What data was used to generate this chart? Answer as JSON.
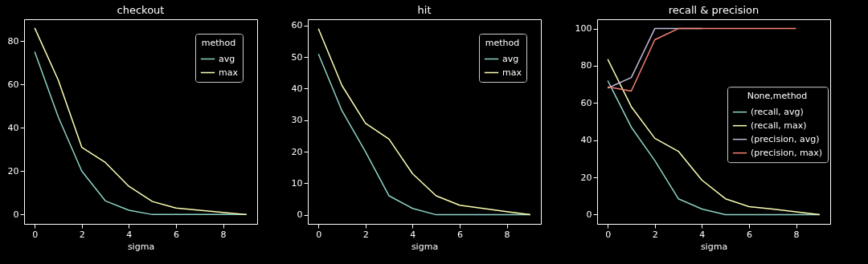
{
  "chart_data": [
    {
      "type": "line",
      "title": "checkout",
      "xlabel": "sigma",
      "legend_title": "method",
      "legend": "top right",
      "x": [
        0,
        1,
        2,
        3,
        4,
        5,
        6,
        7,
        8,
        9
      ],
      "xlim": [
        -0.45,
        9.45
      ],
      "ylim": [
        -4.3,
        90
      ],
      "xticks": [
        0,
        2,
        4,
        6,
        8
      ],
      "yticks": [
        0,
        20,
        40,
        60,
        80
      ],
      "series": [
        {
          "name": "avg",
          "color": "#8dd3c7",
          "values": [
            75,
            45,
            20,
            6.3,
            2,
            0,
            0,
            0,
            0,
            0
          ]
        },
        {
          "name": "max",
          "color": "#feffb3",
          "values": [
            86,
            62,
            31,
            24,
            13,
            6,
            3,
            2,
            1,
            0
          ]
        }
      ]
    },
    {
      "type": "line",
      "title": "hit",
      "xlabel": "sigma",
      "legend_title": "method",
      "legend": "top right",
      "x": [
        0,
        1,
        2,
        3,
        4,
        5,
        6,
        7,
        8,
        9
      ],
      "xlim": [
        -0.45,
        9.45
      ],
      "ylim": [
        -2.9,
        62
      ],
      "xticks": [
        0,
        2,
        4,
        6,
        8
      ],
      "yticks": [
        0,
        10,
        20,
        30,
        40,
        50,
        60
      ],
      "series": [
        {
          "name": "avg",
          "color": "#8dd3c7",
          "values": [
            51,
            33,
            20,
            6,
            2,
            0,
            0,
            0,
            0,
            0
          ]
        },
        {
          "name": "max",
          "color": "#feffb3",
          "values": [
            59,
            41,
            29,
            24,
            13,
            6,
            3,
            2,
            1,
            0
          ]
        }
      ]
    },
    {
      "type": "line",
      "title": "recall & precision",
      "xlabel": "sigma",
      "legend_title": "None,method",
      "legend": "right",
      "x": [
        0,
        1,
        2,
        3,
        4,
        5,
        6,
        7,
        8,
        9
      ],
      "xlim": [
        -0.45,
        9.45
      ],
      "ylim": [
        -5,
        105
      ],
      "xticks": [
        0,
        2,
        4,
        6,
        8
      ],
      "yticks": [
        0,
        20,
        40,
        60,
        80,
        100
      ],
      "series": [
        {
          "name": "(recall, avg)",
          "color": "#8dd3c7",
          "values": [
            72,
            47,
            29,
            8.5,
            3,
            0,
            0,
            0,
            0,
            0
          ]
        },
        {
          "name": "(recall, max)",
          "color": "#feffb3",
          "values": [
            83.5,
            58,
            41,
            34,
            18.5,
            8.5,
            4.3,
            3,
            1.5,
            0
          ]
        },
        {
          "name": "(precision, avg)",
          "color": "#bfbbd9",
          "values": [
            68,
            73.7,
            100,
            100,
            100,
            null,
            null,
            null,
            null,
            null
          ]
        },
        {
          "name": "(precision, max)",
          "color": "#fa8174",
          "values": [
            68.7,
            66.4,
            94,
            100,
            100,
            100,
            100,
            100,
            100,
            null
          ]
        }
      ]
    }
  ]
}
